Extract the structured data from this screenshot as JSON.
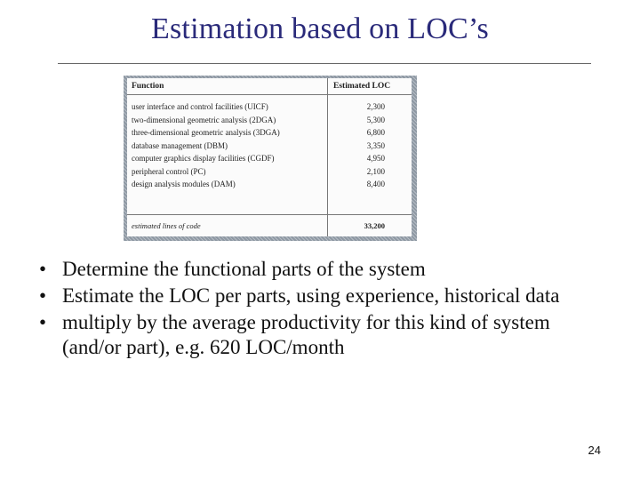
{
  "slide": {
    "title": "Estimation based on LOC’s",
    "page_number": "24"
  },
  "table": {
    "headers": {
      "function": "Function",
      "loc": "Estimated LOC"
    },
    "rows": [
      {
        "function": "user interface and control facilities (UICF)",
        "loc": "2,300"
      },
      {
        "function": "two-dimensional geometric analysis (2DGA)",
        "loc": "5,300"
      },
      {
        "function": "three-dimensional geometric analysis (3DGA)",
        "loc": "6,800"
      },
      {
        "function": "database management (DBM)",
        "loc": "3,350"
      },
      {
        "function": "computer graphics display facilities (CGDF)",
        "loc": "4,950"
      },
      {
        "function": "peripheral control (PC)",
        "loc": "2,100"
      },
      {
        "function": "design analysis modules (DAM)",
        "loc": "8,400"
      }
    ],
    "total_label": "estimated lines of code",
    "total_value": "33,200"
  },
  "bullets": [
    "Determine the functional parts of the system",
    "Estimate the LOC per parts, using experience, historical data",
    "multiply by the average productivity for this kind of system (and/or part), e.g. 620 LOC/month"
  ]
}
